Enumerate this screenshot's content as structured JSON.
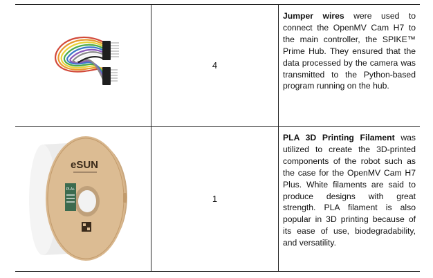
{
  "rows": [
    {
      "image_icon": "jumper-wires-image",
      "quantity": "4",
      "title": "Jumper wires",
      "description": " were used to connect the OpenMV Cam H7 to the main controller, the SPIKE™ Prime Hub. They ensured that the data processed by the camera was transmitted to the Python-based program running on the hub."
    },
    {
      "image_icon": "pla-filament-spool-image",
      "brand_label": "eSUN",
      "product_label": "PLA+",
      "quantity": "1",
      "title": "PLA 3D Printing Filament",
      "description": " was utilized to create the 3D-printed components of the robot such as the case for the OpenMV Cam H7 Plus. White filaments are said to produce designs with great strength. PLA filament is also popular in 3D printing because of its ease of use, biodegradability, and versatility."
    }
  ]
}
